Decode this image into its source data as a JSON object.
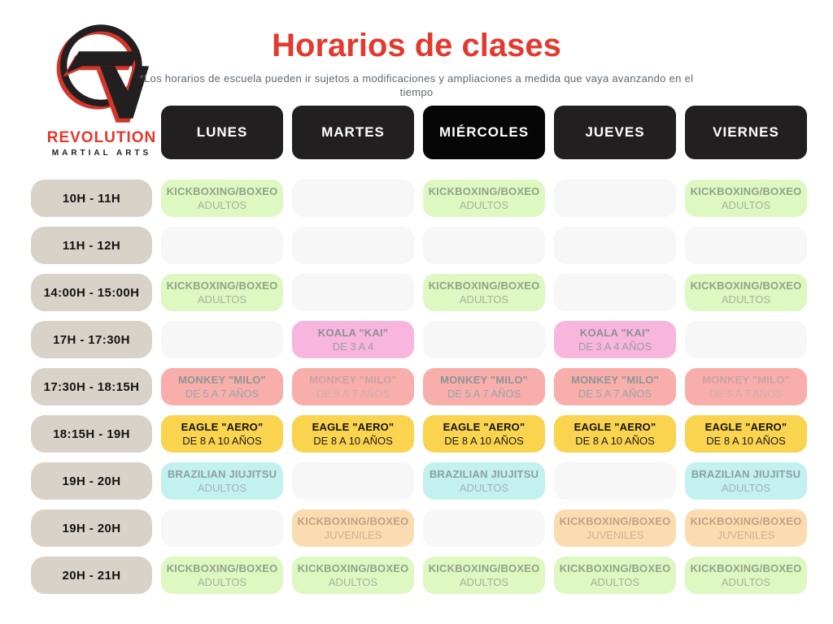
{
  "page": {
    "title": "Horarios de clases",
    "subtitle": "*Los horarios de escuela pueden ir sujetos a modificaciones y ampliaciones a medida que vaya avanzando en el tiempo"
  },
  "logo": {
    "brand": "REVOLUTION",
    "tagline": "MARTIAL ARTS"
  },
  "colors": {
    "title_red": "#e23a2e",
    "header_black": "#221f20",
    "header_black_active": "#060606",
    "time_pill_beige": "#d9d2c9",
    "empty_cell": "#f7f7f7",
    "green": "#ddf8c1",
    "pink": "#f8b5dd",
    "salmon": "#f8aeaa",
    "yellow": "#fad44e",
    "cyan": "#c2f1ef",
    "peach": "#fbdcb0"
  },
  "days": [
    {
      "label": "LUNES",
      "active": false
    },
    {
      "label": "MARTES",
      "active": false
    },
    {
      "label": "MIÉRCOLES",
      "active": true
    },
    {
      "label": "JUEVES",
      "active": false
    },
    {
      "label": "VIERNES",
      "active": false
    }
  ],
  "rows": [
    {
      "time": "10H - 11H",
      "cells": [
        {
          "title": "KICKBOXING/BOXEO",
          "sub": "ADULTOS",
          "style": "green"
        },
        {
          "style": "empty"
        },
        {
          "title": "KICKBOXING/BOXEO",
          "sub": "ADULTOS",
          "style": "green"
        },
        {
          "style": "empty"
        },
        {
          "title": "KICKBOXING/BOXEO",
          "sub": "ADULTOS",
          "style": "green"
        }
      ]
    },
    {
      "time": "11H - 12H",
      "cells": [
        {
          "style": "empty"
        },
        {
          "style": "empty"
        },
        {
          "style": "empty"
        },
        {
          "style": "empty"
        },
        {
          "style": "empty"
        }
      ]
    },
    {
      "time": "14:00H - 15:00H",
      "cells": [
        {
          "title": "KICKBOXING/BOXEO",
          "sub": "ADULTOS",
          "style": "green"
        },
        {
          "style": "empty"
        },
        {
          "title": "KICKBOXING/BOXEO",
          "sub": "ADULTOS",
          "style": "green"
        },
        {
          "style": "empty"
        },
        {
          "title": "KICKBOXING/BOXEO",
          "sub": "ADULTOS",
          "style": "green"
        }
      ]
    },
    {
      "time": "17H - 17:30H",
      "cells": [
        {
          "style": "empty"
        },
        {
          "title": "KOALA \"KAI\"",
          "sub": "DE 3 A 4",
          "style": "pink"
        },
        {
          "style": "empty"
        },
        {
          "title": "KOALA \"KAI\"",
          "sub": "DE 3 A 4 AÑOS",
          "style": "pink"
        },
        {
          "style": "empty"
        }
      ]
    },
    {
      "time": "17:30H - 18:15H",
      "cells": [
        {
          "title": "MONKEY \"MILO\"",
          "sub": "DE 5 A 7 AÑOS",
          "style": "salmon"
        },
        {
          "title": "MONKEY \"MILO\"",
          "sub": "DE 5 A 7 AÑOS",
          "style": "salmon-light"
        },
        {
          "title": "MONKEY \"MILO\"",
          "sub": "DE 5 A 7 AÑOS",
          "style": "salmon"
        },
        {
          "title": "MONKEY \"MILO\"",
          "sub": "DE 5 A 7 AÑOS",
          "style": "salmon"
        },
        {
          "title": "MONKEY \"MILO\"",
          "sub": "DE 5 A 7 AÑOS",
          "style": "salmon-light"
        }
      ]
    },
    {
      "time": "18:15H - 19H",
      "cells": [
        {
          "title": "EAGLE \"AERO\"",
          "sub": "DE 8 A 10 AÑOS",
          "style": "yellow"
        },
        {
          "title": "EAGLE \"AERO\"",
          "sub": "DE 8 A 10 AÑOS",
          "style": "yellow"
        },
        {
          "title": "EAGLE \"AERO\"",
          "sub": "DE 8 A 10 AÑOS",
          "style": "yellow"
        },
        {
          "title": "EAGLE \"AERO\"",
          "sub": "DE 8 A 10 AÑOS",
          "style": "yellow"
        },
        {
          "title": "EAGLE \"AERO\"",
          "sub": "DE 8 A 10 AÑOS",
          "style": "yellow"
        }
      ]
    },
    {
      "time": "19H - 20H",
      "cells": [
        {
          "title": "BRAZILIAN JIUJITSU",
          "sub": "ADULTOS",
          "style": "cyan"
        },
        {
          "style": "empty"
        },
        {
          "title": "BRAZILIAN JIUJITSU",
          "sub": "ADULTOS",
          "style": "cyan"
        },
        {
          "style": "empty"
        },
        {
          "title": "BRAZILIAN JIUJITSU",
          "sub": "ADULTOS",
          "style": "cyan"
        }
      ]
    },
    {
      "time": "19H - 20H",
      "cells": [
        {
          "style": "empty"
        },
        {
          "title": "KICKBOXING/BOXEO",
          "sub": "JUVENILES",
          "style": "peach"
        },
        {
          "style": "empty"
        },
        {
          "title": "KICKBOXING/BOXEO",
          "sub": "JUVENILES",
          "style": "peach"
        },
        {
          "title": "KICKBOXING/BOXEO",
          "sub": "JUVENILES",
          "style": "peach"
        }
      ]
    },
    {
      "time": "20H - 21H",
      "cells": [
        {
          "title": "KICKBOXING/BOXEO",
          "sub": "ADULTOS",
          "style": "green"
        },
        {
          "title": "KICKBOXING/BOXEO",
          "sub": "ADULTOS",
          "style": "green"
        },
        {
          "title": "KICKBOXING/BOXEO",
          "sub": "ADULTOS",
          "style": "green"
        },
        {
          "title": "KICKBOXING/BOXEO",
          "sub": "ADULTOS",
          "style": "green"
        },
        {
          "title": "KICKBOXING/BOXEO",
          "sub": "ADULTOS",
          "style": "green"
        }
      ]
    }
  ]
}
